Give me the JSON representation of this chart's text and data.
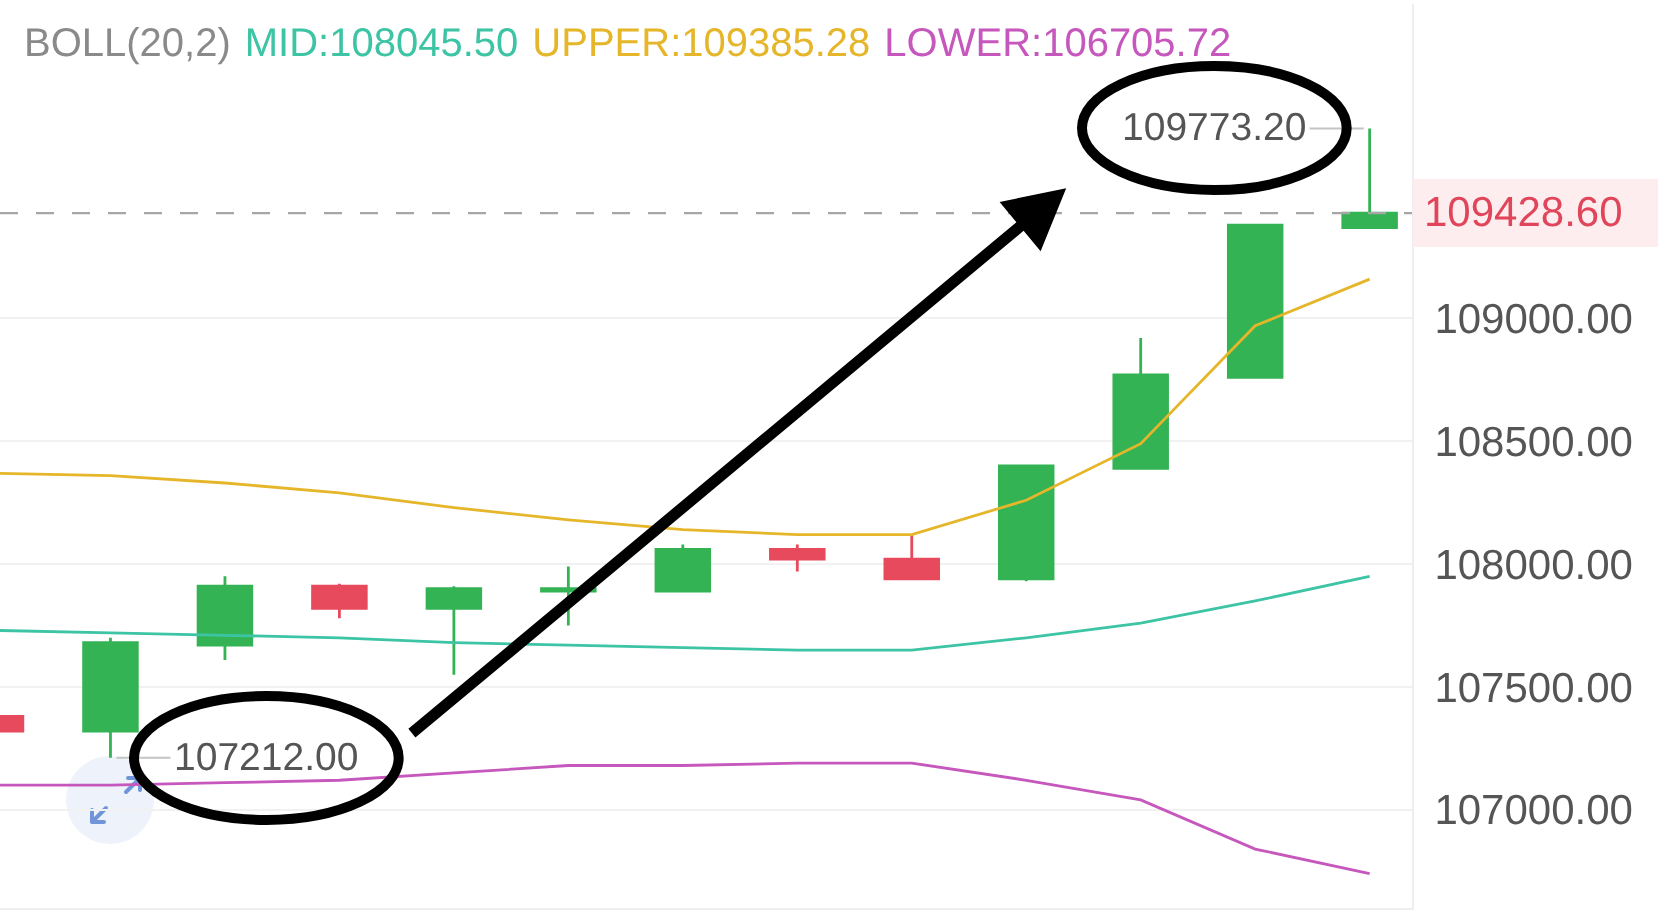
{
  "chart_data": {
    "type": "candlestick",
    "legend_title": "BOLL(20,2)",
    "legend": "top",
    "categories": [
      null,
      null,
      null,
      null,
      null,
      null,
      null,
      null,
      null,
      null,
      null,
      null,
      null
    ],
    "ohlc": [
      [
        107380,
        107380,
        107320,
        107320
      ],
      [
        107320,
        107700,
        107212,
        107680
      ],
      [
        107670,
        107950,
        107610,
        107910
      ],
      [
        107910,
        107920,
        107780,
        107820
      ],
      [
        107820,
        107910,
        107550,
        107900
      ],
      [
        107890,
        107990,
        107750,
        107900
      ],
      [
        107890,
        108080,
        107890,
        108060
      ],
      [
        108060,
        108080,
        107970,
        108020
      ],
      [
        108020,
        108120,
        107940,
        107940
      ],
      [
        107940,
        108400,
        107930,
        108400
      ],
      [
        108390,
        108920,
        108390,
        108770
      ],
      [
        108760,
        109380,
        108760,
        109380
      ],
      [
        109370,
        109773.2,
        109370,
        109428.6
      ]
    ],
    "colors": [
      "#e64a5c",
      "#33b354",
      "#33b354",
      "#e64a5c",
      "#33b354",
      "#33b354",
      "#33b354",
      "#e64a5c",
      "#e64a5c",
      "#33b354",
      "#33b354",
      "#33b354",
      "#33b354"
    ],
    "series": [
      {
        "name": "MID:108045.50",
        "type": "line",
        "color": "#3cc4a4",
        "values": [
          107730,
          107720,
          107710,
          107700,
          107680,
          107670,
          107660,
          107650,
          107650,
          107700,
          107760,
          107850,
          107950
        ]
      },
      {
        "name": "UPPER:109385.28",
        "type": "line",
        "color": "#e6b62a",
        "values": [
          108370,
          108360,
          108330,
          108290,
          108230,
          108180,
          108140,
          108120,
          108120,
          108260,
          108490,
          108970,
          109160
        ]
      },
      {
        "name": "LOWER:106705.72",
        "type": "line",
        "color": "#c657bd",
        "values": [
          107100,
          107100,
          107110,
          107120,
          107150,
          107180,
          107180,
          107190,
          107190,
          107120,
          107040,
          106840,
          106740
        ]
      }
    ],
    "ylim": [
      106600,
      110280
    ],
    "yticks": [
      {
        "value": 107000,
        "label": "107000.00"
      },
      {
        "value": 107500,
        "label": "107500.00"
      },
      {
        "value": 108000,
        "label": "108000.00"
      },
      {
        "value": 108500,
        "label": "108500.00"
      },
      {
        "value": 109000,
        "label": "109000.00"
      }
    ],
    "grid": "y",
    "tick_labels": "y",
    "annotations": [
      "109773.20",
      "107212.00"
    ],
    "ref_lines": [
      {
        "axis": "y",
        "value": 109428.6,
        "label": "109428.60",
        "color": "#a6a6a6",
        "line_style": "dashed"
      }
    ]
  }
}
